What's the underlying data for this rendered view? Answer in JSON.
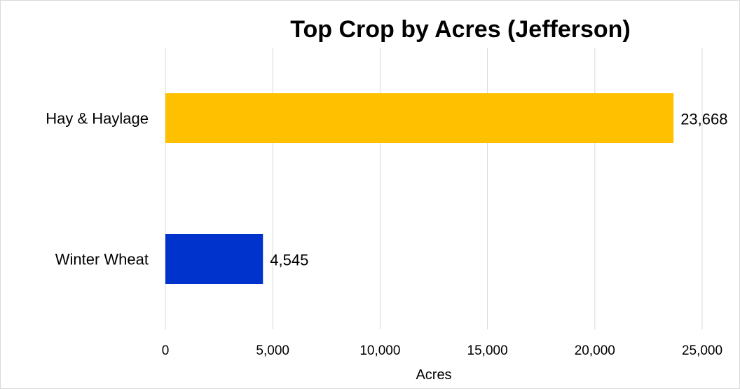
{
  "chart_data": {
    "type": "bar",
    "orientation": "horizontal",
    "title": "Top Crop by Acres (Jefferson)",
    "xlabel": "Acres",
    "ylabel": "",
    "categories": [
      "Hay & Haylage",
      "Winter Wheat"
    ],
    "values": [
      23668,
      4545
    ],
    "value_labels": [
      "23,668",
      "4,545"
    ],
    "colors": [
      "#FFC000",
      "#0033CC"
    ],
    "xlim": [
      0,
      25000
    ],
    "ticks": [
      0,
      5000,
      10000,
      15000,
      20000,
      25000
    ],
    "tick_labels": [
      "0",
      "5,000",
      "10,000",
      "15,000",
      "20,000",
      "25,000"
    ],
    "grid": true,
    "legend": "none"
  }
}
